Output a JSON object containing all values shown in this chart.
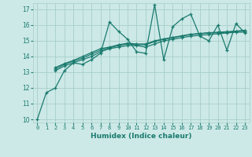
{
  "xlabel": "Humidex (Indice chaleur)",
  "ylabel": "",
  "background_color": "#cce9e7",
  "grid_color": "#a8ceca",
  "line_color": "#1a7a6e",
  "xlim": [
    -0.5,
    23.5
  ],
  "ylim": [
    9.8,
    17.4
  ],
  "xticks": [
    0,
    1,
    2,
    3,
    4,
    5,
    6,
    7,
    8,
    9,
    10,
    11,
    12,
    13,
    14,
    15,
    16,
    17,
    18,
    19,
    20,
    21,
    22,
    23
  ],
  "yticks": [
    10,
    11,
    12,
    13,
    14,
    15,
    16,
    17
  ],
  "series": [
    {
      "x": [
        0,
        1,
        2,
        3,
        4,
        5,
        6,
        7,
        8,
        9,
        10,
        11,
        12,
        13,
        14,
        15,
        16,
        17,
        18,
        19,
        20,
        21,
        22,
        23
      ],
      "y": [
        10.0,
        11.7,
        12.0,
        13.1,
        13.6,
        13.5,
        13.8,
        14.2,
        16.2,
        15.6,
        15.1,
        14.3,
        14.2,
        17.3,
        13.8,
        15.9,
        16.4,
        16.7,
        15.3,
        15.0,
        16.0,
        14.4,
        16.1,
        15.5
      ]
    },
    {
      "x": [
        2,
        3,
        4,
        5,
        6,
        7,
        8,
        9,
        10,
        11,
        12,
        13,
        14,
        15,
        16,
        17,
        18,
        19,
        20,
        21,
        22,
        23
      ],
      "y": [
        13.1,
        13.4,
        13.6,
        13.8,
        14.0,
        14.3,
        14.5,
        14.6,
        14.7,
        14.7,
        14.6,
        14.8,
        15.0,
        15.1,
        15.2,
        15.3,
        15.35,
        15.4,
        15.45,
        15.5,
        15.55,
        15.55
      ]
    },
    {
      "x": [
        2,
        3,
        4,
        5,
        6,
        7,
        8,
        9,
        10,
        11,
        12,
        13,
        14,
        15,
        16,
        17,
        18,
        19,
        20,
        21,
        22,
        23
      ],
      "y": [
        13.2,
        13.5,
        13.7,
        13.9,
        14.15,
        14.4,
        14.55,
        14.7,
        14.8,
        14.75,
        14.75,
        14.95,
        15.1,
        15.2,
        15.3,
        15.4,
        15.45,
        15.5,
        15.52,
        15.55,
        15.6,
        15.65
      ]
    },
    {
      "x": [
        2,
        3,
        4,
        5,
        6,
        7,
        8,
        9,
        10,
        11,
        12,
        13,
        14,
        15,
        16,
        17,
        18,
        19,
        20,
        21,
        22,
        23
      ],
      "y": [
        13.3,
        13.55,
        13.75,
        14.0,
        14.25,
        14.5,
        14.6,
        14.75,
        14.85,
        14.8,
        14.8,
        15.0,
        15.12,
        15.22,
        15.32,
        15.42,
        15.47,
        15.52,
        15.55,
        15.58,
        15.62,
        15.67
      ]
    }
  ],
  "marker": "+",
  "markersize": 3.5,
  "markeredgewidth": 0.9,
  "linewidth": 0.9
}
